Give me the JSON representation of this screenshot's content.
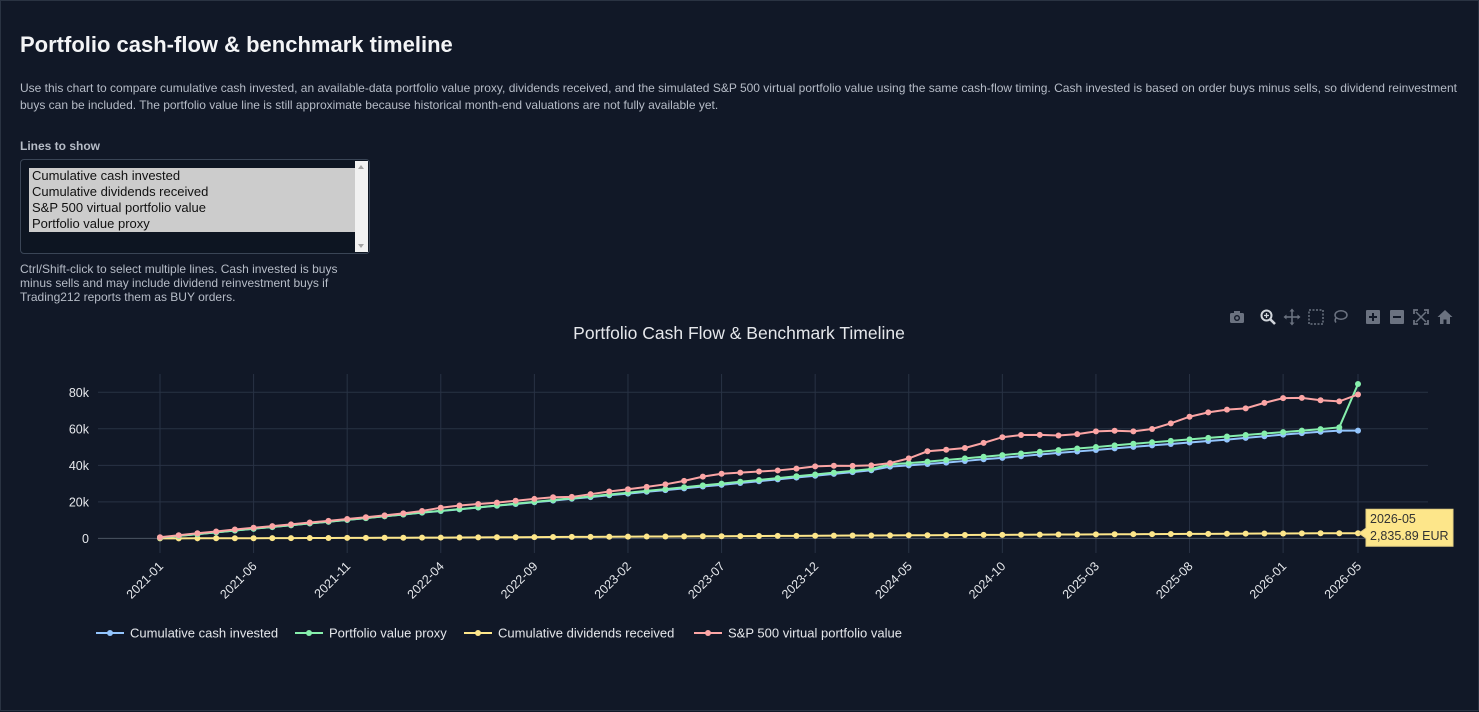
{
  "page": {
    "title": "Portfolio cash-flow & benchmark timeline",
    "description": "Use this chart to compare cumulative cash invested, an available-data portfolio value proxy, dividends received, and the simulated S&P 500 virtual portfolio value using the same cash-flow timing. Cash invested is based on order buys minus sells, so dividend reinvestment buys can be included. The portfolio value line is still approximate because historical month-end valuations are not fully available yet.",
    "lines_label": "Lines to show",
    "select_options": [
      "Cumulative cash invested",
      "Cumulative dividends received",
      "S&P 500 virtual portfolio value",
      "Portfolio value proxy"
    ],
    "help_text": "Ctrl/Shift-click to select multiple lines. Cash invested is buys minus sells and may include dividend reinvestment buys if Trading212 reports them as BUY orders."
  },
  "modebar": {
    "icons": [
      "camera-icon",
      "zoom-icon",
      "pan-icon",
      "box-select-icon",
      "lasso-select-icon",
      "zoom-in-icon",
      "zoom-out-icon",
      "autoscale-icon",
      "reset-axes-icon"
    ]
  },
  "chart_data": {
    "type": "line",
    "title": "Portfolio Cash Flow & Benchmark Timeline",
    "xlabel": "",
    "ylabel": "",
    "x_start": "2021-01",
    "x_end": "2026-05",
    "x_ticks": [
      "2021-01",
      "2021-06",
      "2021-11",
      "2022-04",
      "2022-09",
      "2023-02",
      "2023-07",
      "2023-12",
      "2024-05",
      "2024-10",
      "2025-03",
      "2025-08",
      "2026-01",
      "2026-05"
    ],
    "ylim": [
      -8000,
      90000
    ],
    "y_ticks": [
      0,
      20000,
      40000,
      60000,
      80000
    ],
    "y_tick_labels": [
      "0",
      "20k",
      "40k",
      "60k",
      "80k"
    ],
    "grid": true,
    "legend_position": "bottom-left",
    "series": [
      {
        "name": "Cumulative cash invested",
        "color": "#93c5fd",
        "values": [
          500,
          1400,
          2300,
          3300,
          4300,
          5300,
          6200,
          7200,
          8200,
          9100,
          10100,
          11100,
          12100,
          13100,
          14100,
          15000,
          15900,
          16900,
          17900,
          18800,
          19800,
          20700,
          21700,
          22600,
          23600,
          24500,
          25500,
          26400,
          27400,
          28400,
          29300,
          30300,
          31300,
          32300,
          33300,
          34300,
          35300,
          36300,
          37300,
          39300,
          40000,
          40700,
          41500,
          42400,
          43300,
          44100,
          45000,
          45900,
          46800,
          47600,
          48400,
          49300,
          50100,
          50900,
          51700,
          52500,
          53300,
          54100,
          55000,
          55900,
          56800,
          57600,
          58400,
          59000,
          59000
        ]
      },
      {
        "name": "Portfolio value proxy",
        "color": "#86efac",
        "values": [
          500,
          1400,
          2300,
          3300,
          4300,
          5300,
          6200,
          7200,
          8200,
          9100,
          10100,
          11100,
          12100,
          13100,
          14200,
          15100,
          16000,
          17000,
          18000,
          19000,
          20000,
          21000,
          22000,
          23000,
          24000,
          25000,
          26000,
          27000,
          28000,
          29000,
          30000,
          31000,
          32000,
          33000,
          34000,
          35000,
          36000,
          37000,
          38000,
          40500,
          41200,
          42000,
          42900,
          43800,
          44700,
          45600,
          46500,
          47400,
          48300,
          49200,
          50000,
          50900,
          51800,
          52600,
          53400,
          54200,
          55000,
          55800,
          56600,
          57400,
          58200,
          59000,
          59800,
          60800,
          84500
        ]
      },
      {
        "name": "Cumulative dividends received",
        "color": "#fde68a",
        "values": [
          0,
          20,
          40,
          60,
          80,
          100,
          130,
          160,
          190,
          220,
          250,
          290,
          330,
          370,
          410,
          450,
          500,
          550,
          600,
          650,
          700,
          750,
          800,
          850,
          900,
          950,
          1000,
          1050,
          1100,
          1150,
          1200,
          1250,
          1300,
          1350,
          1400,
          1450,
          1500,
          1550,
          1600,
          1650,
          1700,
          1750,
          1800,
          1850,
          1900,
          1950,
          2000,
          2050,
          2100,
          2150,
          2200,
          2250,
          2300,
          2350,
          2400,
          2450,
          2500,
          2550,
          2600,
          2650,
          2700,
          2750,
          2790,
          2815,
          2835.89
        ]
      },
      {
        "name": "S&P 500 virtual portfolio value",
        "color": "#fca5a5",
        "values": [
          600,
          1700,
          2800,
          3800,
          4900,
          5800,
          6700,
          7700,
          8700,
          9600,
          10600,
          11600,
          12600,
          13700,
          15000,
          16800,
          18000,
          18800,
          19600,
          20600,
          21600,
          22500,
          22700,
          24200,
          25700,
          26900,
          28200,
          29600,
          31500,
          33800,
          35400,
          36000,
          36600,
          37200,
          38200,
          39400,
          39800,
          39700,
          40000,
          41200,
          43800,
          47700,
          48500,
          49500,
          52300,
          55400,
          56600,
          56700,
          56300,
          57100,
          58600,
          58900,
          58600,
          59900,
          63000,
          66600,
          69000,
          70500,
          71200,
          74200,
          76800,
          76900,
          75600,
          75000,
          78800
        ]
      }
    ],
    "tooltip": {
      "label": "2026-05",
      "value": "2,835.89 EUR"
    }
  }
}
